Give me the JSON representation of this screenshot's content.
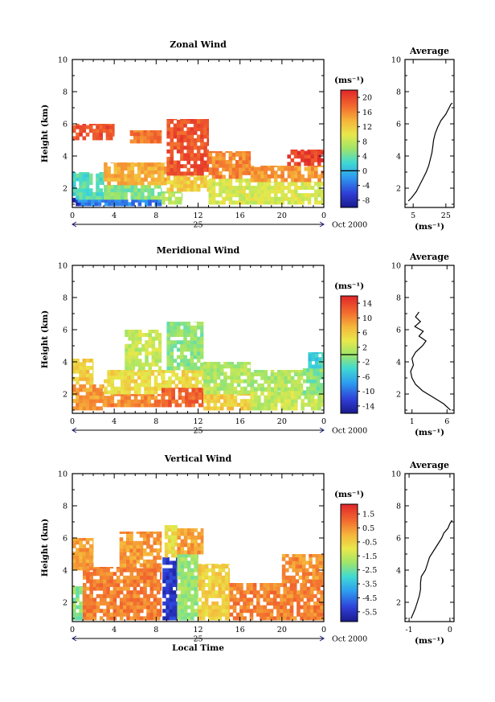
{
  "chart_data": [
    {
      "type": "heatmap",
      "title": "Zonal Wind",
      "ylabel": "Height (km)",
      "xlabel": "",
      "x_ticks": [
        "0",
        "4",
        "8",
        "12",
        "16",
        "20",
        "0"
      ],
      "y_ticks": [
        "2",
        "4",
        "6",
        "8",
        "10"
      ],
      "xlim": [
        0,
        24
      ],
      "ylim": [
        0.8,
        10
      ],
      "day_label": "25",
      "date_label": "Oct 2000",
      "colorbar": {
        "unit_label": "(ms⁻¹)",
        "ticks": [
          "20",
          "16",
          "12",
          "8",
          "4",
          "0",
          "-4",
          "-8"
        ],
        "range": [
          -10,
          22
        ],
        "zero_line": 0
      },
      "zones": [
        {
          "x0": 0,
          "x1": 1.2,
          "y0": 0.9,
          "y1": 1.4,
          "value": -8
        },
        {
          "x0": 0.5,
          "x1": 8.5,
          "y0": 0.9,
          "y1": 1.3,
          "value": -3
        },
        {
          "x0": 0,
          "x1": 3,
          "y0": 1.3,
          "y1": 3.0,
          "value": 3
        },
        {
          "x0": 3,
          "x1": 8.5,
          "y0": 1.3,
          "y1": 2.2,
          "value": 5
        },
        {
          "x0": 3,
          "x1": 9,
          "y0": 2.2,
          "y1": 3.6,
          "value": 14
        },
        {
          "x0": 8.5,
          "x1": 10.5,
          "y0": 1.0,
          "y1": 1.8,
          "value": 7
        },
        {
          "x0": 9,
          "x1": 13,
          "y0": 1.8,
          "y1": 2.8,
          "value": 12
        },
        {
          "x0": 9,
          "x1": 13,
          "y0": 2.8,
          "y1": 6.3,
          "value": 19
        },
        {
          "x0": 13,
          "x1": 17,
          "y0": 1.0,
          "y1": 2.6,
          "value": 9
        },
        {
          "x0": 13,
          "x1": 17,
          "y0": 2.6,
          "y1": 4.3,
          "value": 16
        },
        {
          "x0": 17,
          "x1": 24,
          "y0": 1.0,
          "y1": 2.4,
          "value": 9
        },
        {
          "x0": 17,
          "x1": 24,
          "y0": 2.4,
          "y1": 3.4,
          "value": 15
        },
        {
          "x0": 20.5,
          "x1": 24,
          "y0": 3.4,
          "y1": 4.4,
          "value": 20
        },
        {
          "x0": 0,
          "x1": 4,
          "y0": 5.0,
          "y1": 6.0,
          "value": 19
        },
        {
          "x0": 5.5,
          "x1": 8.5,
          "y0": 4.8,
          "y1": 5.6,
          "value": 17
        }
      ],
      "profile": {
        "title": "Average",
        "x_ticks": [
          "5",
          "25"
        ],
        "xlim": [
          0,
          30
        ],
        "unit_label": "(ms⁻¹)",
        "y_ticks": [
          "2",
          "4",
          "6",
          "8",
          "10"
        ],
        "x": [
          2,
          4,
          7,
          9,
          11,
          13,
          14.5,
          15.5,
          16.5,
          17,
          17.5,
          18.5,
          20,
          22,
          25,
          27,
          28,
          29
        ],
        "y": [
          1.2,
          1.4,
          1.8,
          2.2,
          2.6,
          3.0,
          3.4,
          3.8,
          4.2,
          4.6,
          5.0,
          5.4,
          5.8,
          6.2,
          6.6,
          7.0,
          7.2,
          7.3
        ]
      }
    },
    {
      "type": "heatmap",
      "title": "Meridional Wind",
      "ylabel": "Height (km)",
      "xlabel": "",
      "x_ticks": [
        "0",
        "4",
        "8",
        "12",
        "16",
        "20",
        "0"
      ],
      "y_ticks": [
        "2",
        "4",
        "6",
        "8",
        "10"
      ],
      "xlim": [
        0,
        24
      ],
      "ylim": [
        0.8,
        10
      ],
      "day_label": "25",
      "date_label": "Oct 2000",
      "colorbar": {
        "unit_label": "(ms⁻¹)",
        "ticks": [
          "14",
          "10",
          "6",
          "2",
          "-2",
          "-6",
          "-10",
          "-14"
        ],
        "range": [
          -16,
          16
        ],
        "zero_line": 0
      },
      "zones": [
        {
          "x0": 0,
          "x1": 3,
          "y0": 1.0,
          "y1": 2.6,
          "value": 9
        },
        {
          "x0": 0,
          "x1": 2,
          "y0": 2.6,
          "y1": 4.2,
          "value": 6
        },
        {
          "x0": 3,
          "x1": 8.5,
          "y0": 1.2,
          "y1": 2.0,
          "value": 10
        },
        {
          "x0": 3,
          "x1": 8.5,
          "y0": 2.0,
          "y1": 3.5,
          "value": 5
        },
        {
          "x0": 8.5,
          "x1": 12.5,
          "y0": 1.2,
          "y1": 2.4,
          "value": 12
        },
        {
          "x0": 8.5,
          "x1": 12.5,
          "y0": 2.4,
          "y1": 3.5,
          "value": 5
        },
        {
          "x0": 9,
          "x1": 12.5,
          "y0": 3.5,
          "y1": 6.5,
          "value": -0.5
        },
        {
          "x0": 12.5,
          "x1": 17,
          "y0": 1.0,
          "y1": 2.0,
          "value": 6
        },
        {
          "x0": 12.5,
          "x1": 17,
          "y0": 2.0,
          "y1": 4.0,
          "value": 1
        },
        {
          "x0": 17,
          "x1": 24,
          "y0": 1.0,
          "y1": 2.2,
          "value": 2
        },
        {
          "x0": 17,
          "x1": 22,
          "y0": 2.2,
          "y1": 3.5,
          "value": 1
        },
        {
          "x0": 22,
          "x1": 24,
          "y0": 2.0,
          "y1": 3.6,
          "value": -1
        },
        {
          "x0": 22.5,
          "x1": 24,
          "y0": 3.6,
          "y1": 4.6,
          "value": -4
        },
        {
          "x0": 5,
          "x1": 8.5,
          "y0": 3.5,
          "y1": 6.0,
          "value": 2
        }
      ],
      "profile": {
        "title": "Average",
        "x_ticks": [
          "1",
          "6"
        ],
        "xlim": [
          0,
          7
        ],
        "unit_label": "(ms⁻¹)",
        "y_ticks": [
          "2",
          "4",
          "6",
          "8",
          "10"
        ],
        "x": [
          6.5,
          5.5,
          4,
          2.5,
          1.5,
          1.0,
          0.8,
          1.2,
          1.0,
          1.5,
          2.5,
          3.0,
          2.0,
          2.6,
          1.4,
          2.2,
          1.5,
          2.0
        ],
        "y": [
          1.0,
          1.4,
          1.8,
          2.2,
          2.6,
          3.0,
          3.4,
          3.8,
          4.2,
          4.6,
          5.0,
          5.3,
          5.6,
          5.9,
          6.2,
          6.5,
          6.8,
          7.1
        ]
      }
    },
    {
      "type": "heatmap",
      "title": "Vertical Wind",
      "ylabel": "Height (km)",
      "xlabel": "Local Time",
      "x_ticks": [
        "0",
        "4",
        "8",
        "12",
        "16",
        "20",
        "0"
      ],
      "y_ticks": [
        "2",
        "4",
        "6",
        "8",
        "10"
      ],
      "xlim": [
        0,
        24
      ],
      "ylim": [
        0.8,
        10
      ],
      "day_label": "25",
      "date_label": "Oct 2000",
      "colorbar": {
        "unit_label": "(ms⁻¹)",
        "ticks": [
          "1.5",
          "0.5",
          "-0.5",
          "-1.5",
          "-2.5",
          "-3.5",
          "-4.5",
          "-5.5"
        ],
        "range": [
          -6.2,
          2.2
        ],
        "zero_line": null
      },
      "zones": [
        {
          "x0": 0,
          "x1": 1.0,
          "y0": 0.9,
          "y1": 3.0,
          "value": -2.2
        },
        {
          "x0": 1.0,
          "x1": 8.5,
          "y0": 0.9,
          "y1": 4.2,
          "value": 0.7
        },
        {
          "x0": 0,
          "x1": 2,
          "y0": 4.0,
          "y1": 6.0,
          "value": 0.3
        },
        {
          "x0": 4.5,
          "x1": 8.5,
          "y0": 4.2,
          "y1": 6.4,
          "value": 0.4
        },
        {
          "x0": 8.6,
          "x1": 10.0,
          "y0": 0.9,
          "y1": 4.8,
          "value": -5.4
        },
        {
          "x0": 8.8,
          "x1": 10.0,
          "y0": 4.8,
          "y1": 6.8,
          "value": -0.8
        },
        {
          "x0": 10.0,
          "x1": 12.0,
          "y0": 0.9,
          "y1": 5.0,
          "value": -2.0
        },
        {
          "x0": 10.0,
          "x1": 12.5,
          "y0": 5.0,
          "y1": 6.6,
          "value": 0.3
        },
        {
          "x0": 12.0,
          "x1": 15.0,
          "y0": 0.9,
          "y1": 4.4,
          "value": -0.5
        },
        {
          "x0": 15.0,
          "x1": 24,
          "y0": 0.9,
          "y1": 3.2,
          "value": 0.7
        },
        {
          "x0": 20.0,
          "x1": 24,
          "y0": 3.2,
          "y1": 5.0,
          "value": 0.5
        }
      ],
      "profile": {
        "title": "Average",
        "x_ticks": [
          "-1",
          "0"
        ],
        "xlim": [
          -1.1,
          0.1
        ],
        "unit_label": "(ms⁻¹)",
        "y_ticks": [
          "2",
          "4",
          "6",
          "8",
          "10"
        ],
        "x": [
          -0.95,
          -0.9,
          -0.85,
          -0.8,
          -0.75,
          -0.72,
          -0.72,
          -0.7,
          -0.6,
          -0.55,
          -0.5,
          -0.4,
          -0.3,
          -0.2,
          -0.15,
          -0.05,
          0.0,
          0.05
        ],
        "y": [
          1.0,
          1.3,
          1.6,
          2.0,
          2.4,
          2.8,
          3.2,
          3.6,
          4.0,
          4.4,
          4.8,
          5.2,
          5.6,
          6.0,
          6.3,
          6.6,
          6.9,
          7.1
        ]
      }
    }
  ]
}
